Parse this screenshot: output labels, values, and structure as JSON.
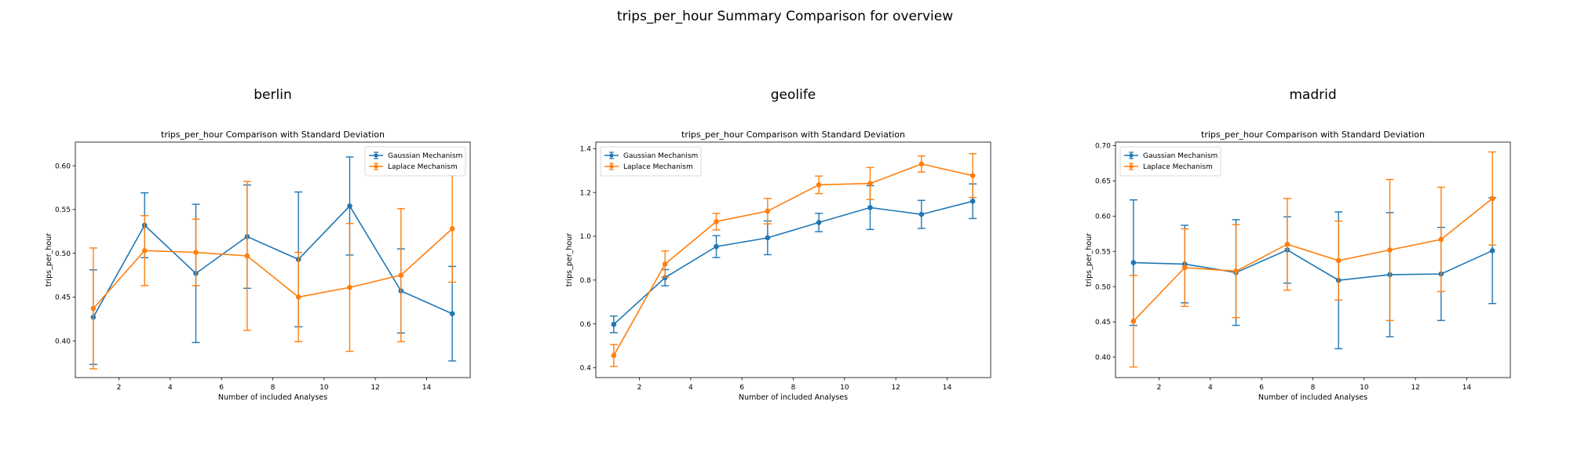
{
  "figure": {
    "suptitle": "trips_per_hour Summary Comparison for overview"
  },
  "chart_data": [
    {
      "type": "line",
      "panel_title": "berlin",
      "title": "trips_per_hour Comparison with Standard Deviation",
      "xlabel": "Number of included Analyses",
      "ylabel": "trips_per_hour",
      "xlim": [
        0.3,
        15.7
      ],
      "ylim": [
        0.358,
        0.627
      ],
      "xticks": [
        2,
        4,
        6,
        8,
        10,
        12,
        14
      ],
      "yticks": [
        0.4,
        0.45,
        0.5,
        0.55,
        0.6
      ],
      "ytick_labels": [
        "0.40",
        "0.45",
        "0.50",
        "0.55",
        "0.60"
      ],
      "legend_position": "upper right",
      "grid": false,
      "x": [
        1,
        3,
        5,
        7,
        9,
        11,
        13,
        15
      ],
      "series": [
        {
          "name": "Gaussian Mechanism",
          "color": "#1f77b4",
          "values": [
            0.427,
            0.532,
            0.477,
            0.519,
            0.493,
            0.554,
            0.457,
            0.431
          ],
          "err": [
            0.054,
            0.037,
            0.079,
            0.059,
            0.077,
            0.056,
            0.048,
            0.054
          ]
        },
        {
          "name": "Laplace Mechanism",
          "color": "#ff7f0e",
          "values": [
            0.437,
            0.503,
            0.501,
            0.497,
            0.45,
            0.461,
            0.475,
            0.528
          ],
          "err": [
            0.069,
            0.04,
            0.038,
            0.085,
            0.051,
            0.073,
            0.076,
            0.061
          ]
        }
      ]
    },
    {
      "type": "line",
      "panel_title": "geolife",
      "title": "trips_per_hour Comparison with Standard Deviation",
      "xlabel": "Number of included Analyses",
      "ylabel": "trips_per_hour",
      "xlim": [
        0.3,
        15.7
      ],
      "ylim": [
        0.355,
        1.43
      ],
      "xticks": [
        2,
        4,
        6,
        8,
        10,
        12,
        14
      ],
      "yticks": [
        0.4,
        0.6,
        0.8,
        1.0,
        1.2,
        1.4
      ],
      "ytick_labels": [
        "0.4",
        "0.6",
        "0.8",
        "1.0",
        "1.2",
        "1.4"
      ],
      "legend_position": "upper left",
      "grid": false,
      "x": [
        1,
        3,
        5,
        7,
        9,
        11,
        13,
        15
      ],
      "series": [
        {
          "name": "Gaussian Mechanism",
          "color": "#1f77b4",
          "values": [
            0.598,
            0.811,
            0.953,
            0.993,
            1.063,
            1.131,
            1.1,
            1.16
          ],
          "err": [
            0.038,
            0.037,
            0.05,
            0.077,
            0.042,
            0.1,
            0.064,
            0.079
          ]
        },
        {
          "name": "Laplace Mechanism",
          "color": "#ff7f0e",
          "values": [
            0.456,
            0.873,
            1.067,
            1.115,
            1.235,
            1.241,
            1.33,
            1.277
          ],
          "err": [
            0.05,
            0.06,
            0.038,
            0.058,
            0.04,
            0.073,
            0.037,
            0.1
          ]
        }
      ]
    },
    {
      "type": "line",
      "panel_title": "madrid",
      "title": "trips_per_hour Comparison with Standard Deviation",
      "xlabel": "Number of included Analyses",
      "ylabel": "trips_per_hour",
      "xlim": [
        0.3,
        15.7
      ],
      "ylim": [
        0.371,
        0.705
      ],
      "xticks": [
        2,
        4,
        6,
        8,
        10,
        12,
        14
      ],
      "yticks": [
        0.4,
        0.45,
        0.5,
        0.55,
        0.6,
        0.65,
        0.7
      ],
      "ytick_labels": [
        "0.40",
        "0.45",
        "0.50",
        "0.55",
        "0.60",
        "0.65",
        "0.70"
      ],
      "legend_position": "upper left",
      "grid": false,
      "x": [
        1,
        3,
        5,
        7,
        9,
        11,
        13,
        15
      ],
      "series": [
        {
          "name": "Gaussian Mechanism",
          "color": "#1f77b4",
          "values": [
            0.534,
            0.532,
            0.52,
            0.552,
            0.509,
            0.517,
            0.518,
            0.551
          ],
          "err": [
            0.089,
            0.055,
            0.075,
            0.047,
            0.097,
            0.088,
            0.066,
            0.075
          ]
        },
        {
          "name": "Laplace Mechanism",
          "color": "#ff7f0e",
          "values": [
            0.451,
            0.527,
            0.522,
            0.56,
            0.537,
            0.552,
            0.567,
            0.625
          ],
          "err": [
            0.065,
            0.055,
            0.066,
            0.065,
            0.056,
            0.1,
            0.074,
            0.066
          ]
        }
      ]
    }
  ]
}
